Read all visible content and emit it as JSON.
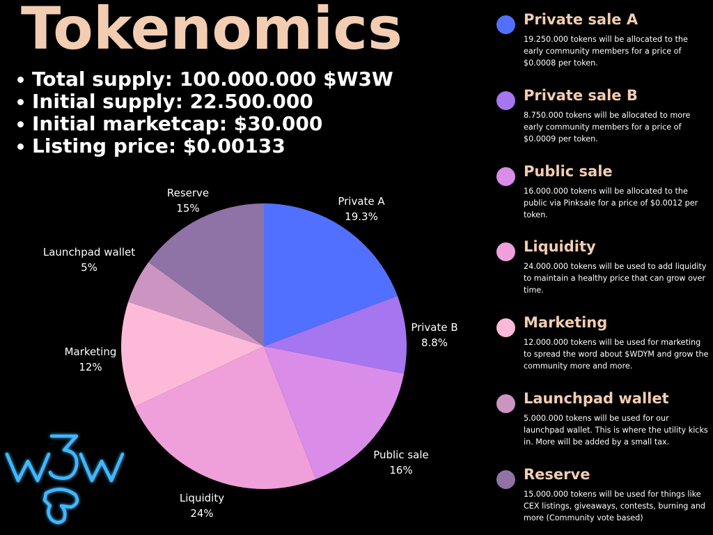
{
  "header": {
    "title": "Tokenomics"
  },
  "facts": [
    "Total supply: 100.000.000 $W3W",
    "Initial supply: 22.500.000",
    "Initial marketcap: $30.000",
    "Listing price: $0.00133"
  ],
  "chart_data": {
    "type": "pie",
    "title": "",
    "slices": [
      {
        "label": "Private A",
        "percent_label": "19.3%",
        "value": 19.3,
        "color": "#5170ff"
      },
      {
        "label": "Private B",
        "percent_label": "8.8%",
        "value": 8.8,
        "color": "#a675f0"
      },
      {
        "label": "Public sale",
        "percent_label": "16%",
        "value": 16,
        "color": "#d98ce8"
      },
      {
        "label": "Liquidity",
        "percent_label": "24%",
        "value": 24,
        "color": "#ef9fd9"
      },
      {
        "label": "Marketing",
        "percent_label": "12%",
        "value": 12,
        "color": "#fdbad8"
      },
      {
        "label": "Launchpad wallet",
        "percent_label": "5%",
        "value": 5,
        "color": "#cc95c1"
      },
      {
        "label": "Reserve",
        "percent_label": "15%",
        "value": 15,
        "color": "#8f72a6"
      }
    ]
  },
  "legend": [
    {
      "name": "Private sale A",
      "color": "#5170ff",
      "desc": "19.250.000 tokens will be allocated to the early community members for a price of $0.0008 per token."
    },
    {
      "name": "Private sale B",
      "color": "#a675f0",
      "desc": "8.750.000 tokens will be allocated to more early community members for a price of $0.0009 per token."
    },
    {
      "name": "Public sale",
      "color": "#d98ce8",
      "desc": "16.000.000 tokens will be allocated to the public via Pinksale for a price of $0.0012 per token."
    },
    {
      "name": "Liquidity",
      "color": "#ef9fd9",
      "desc": "24.000.000 tokens will be used to add liquidity to maintain a healthy price that can grow over time."
    },
    {
      "name": "Marketing",
      "color": "#fdbad8",
      "desc": "12.000.000 tokens will be used for marketing to spread the word about $WDYM and grow the community more and more."
    },
    {
      "name": "Launchpad wallet",
      "color": "#cc95c1",
      "desc": "5.000.000 tokens will be used for our launchpad wallet. This is where the utility kicks in. More will be added by a small tax."
    },
    {
      "name": "Reserve",
      "color": "#8f72a6",
      "desc": "15.000.000 tokens will be used for things like CEX listings, giveaways, contests, burning and more (Community vote based)"
    }
  ],
  "logo": {
    "text": "w3w",
    "color": "#3fb8ff"
  }
}
